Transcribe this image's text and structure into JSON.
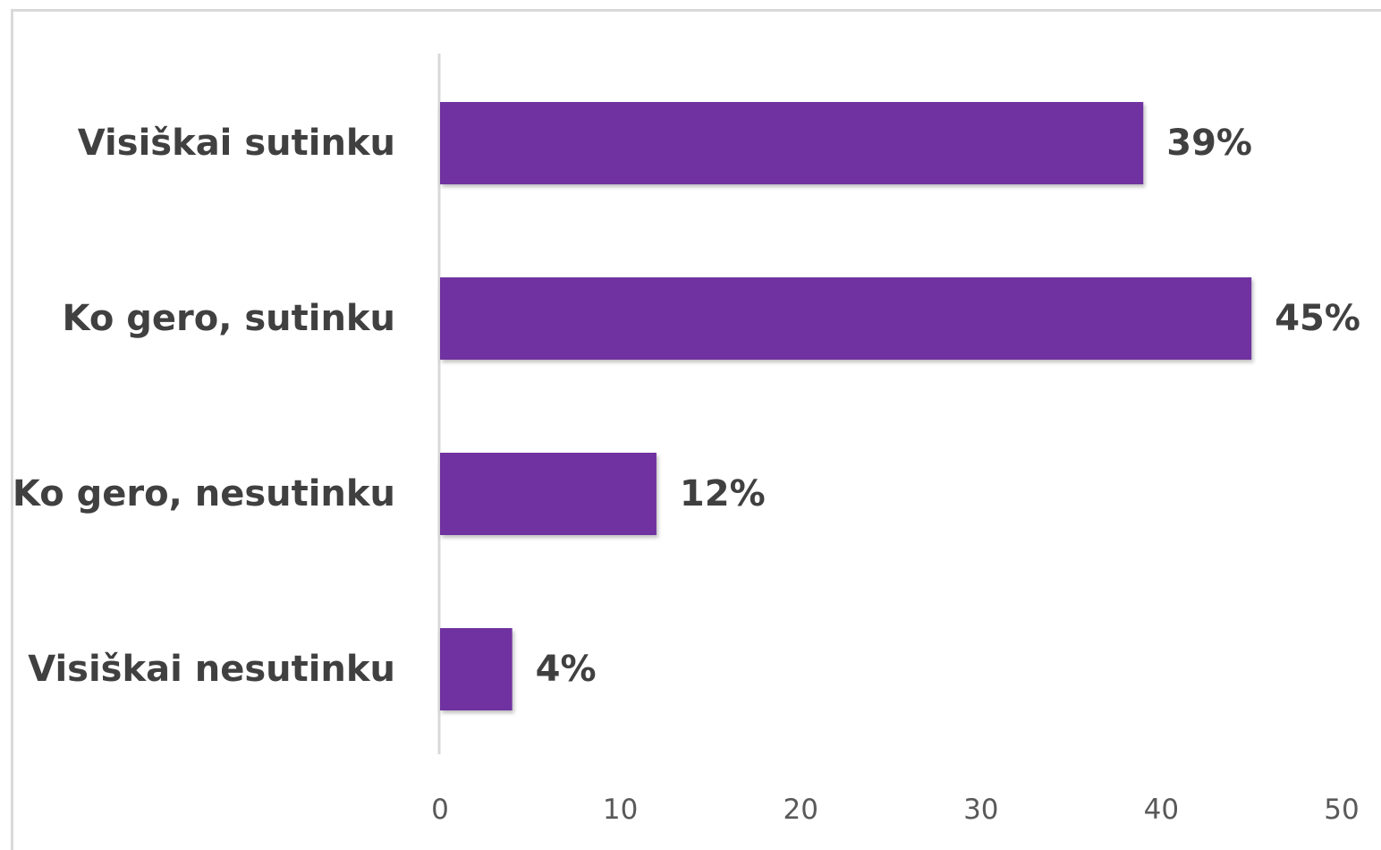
{
  "chart_data": {
    "type": "bar",
    "orientation": "horizontal",
    "categories": [
      "Visiškai sutinku",
      "Ko gero, sutinku",
      "Ko gero, nesutinku",
      "Visiškai nesutinku"
    ],
    "values": [
      39,
      45,
      12,
      4
    ],
    "data_labels": [
      "39%",
      "45%",
      "12%",
      "4%"
    ],
    "xlim": [
      0,
      50
    ],
    "x_ticks": [
      "0",
      "10",
      "20",
      "30",
      "40",
      "50"
    ],
    "title": "",
    "xlabel": "",
    "ylabel": "",
    "grid": false,
    "legend": "none",
    "bar_color": "#7030A0",
    "axis_color": "#d9d9d9"
  }
}
